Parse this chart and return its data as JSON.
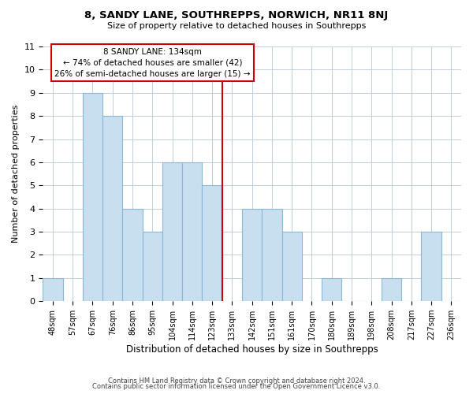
{
  "title": "8, SANDY LANE, SOUTHREPPS, NORWICH, NR11 8NJ",
  "subtitle": "Size of property relative to detached houses in Southrepps",
  "xlabel": "Distribution of detached houses by size in Southrepps",
  "ylabel": "Number of detached properties",
  "bin_labels": [
    "48sqm",
    "57sqm",
    "67sqm",
    "76sqm",
    "86sqm",
    "95sqm",
    "104sqm",
    "114sqm",
    "123sqm",
    "133sqm",
    "142sqm",
    "151sqm",
    "161sqm",
    "170sqm",
    "180sqm",
    "189sqm",
    "198sqm",
    "208sqm",
    "217sqm",
    "227sqm",
    "236sqm"
  ],
  "bar_heights": [
    1,
    0,
    9,
    8,
    4,
    3,
    6,
    6,
    5,
    0,
    4,
    4,
    3,
    0,
    1,
    0,
    0,
    1,
    0,
    3,
    0
  ],
  "bar_color": "#c8dff0",
  "bar_edge_color": "#8ab8d4",
  "highlight_line_color": "#cc0000",
  "annotation_line1": "8 SANDY LANE: 134sqm",
  "annotation_line2": "← 74% of detached houses are smaller (42)",
  "annotation_line3": "26% of semi-detached houses are larger (15) →",
  "annotation_box_color": "#ffffff",
  "annotation_box_edge_color": "#cc0000",
  "ylim": [
    0,
    11
  ],
  "yticks": [
    0,
    1,
    2,
    3,
    4,
    5,
    6,
    7,
    8,
    9,
    10,
    11
  ],
  "footer_line1": "Contains HM Land Registry data © Crown copyright and database right 2024.",
  "footer_line2": "Contains public sector information licensed under the Open Government Licence v3.0.",
  "bg_color": "#ffffff",
  "grid_color": "#c0cedd"
}
